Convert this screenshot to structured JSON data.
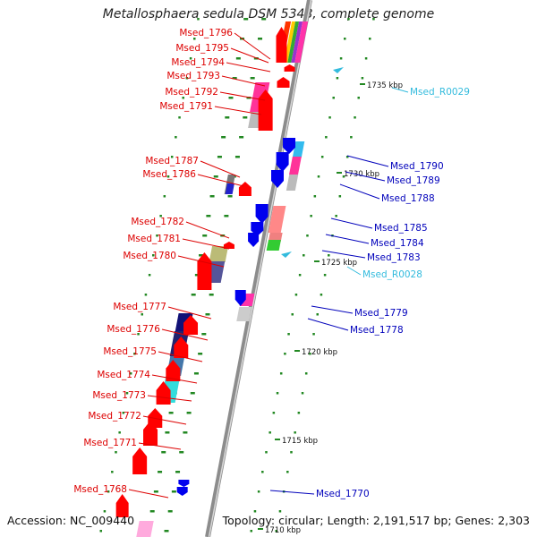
{
  "title": "Metallosphaera sedula DSM 5348, complete genome",
  "accession": "Accession: NC_009440",
  "summary": "Topology: circular; Length: 2,191,517 bp; Genes: 2,303",
  "colors": {
    "forward_label": "#dd0000",
    "reverse_label": "#0000bb",
    "rna_label": "#33bbdd",
    "tick_label": "#111111",
    "backbone": "#8c8c8c",
    "dots": "#228822"
  },
  "kbp_ticks": [
    "1735 kbp",
    "1730 kbp",
    "1725 kbp",
    "1720 kbp",
    "1715 kbp",
    "1710 kbp"
  ],
  "forward_genes": [
    "Msed_1796",
    "Msed_1795",
    "Msed_1794",
    "Msed_1793",
    "Msed_1792",
    "Msed_1791",
    "Msed_1787",
    "Msed_1786",
    "Msed_1782",
    "Msed_1781",
    "Msed_1780",
    "Msed_1777",
    "Msed_1776",
    "Msed_1775",
    "Msed_1774",
    "Msed_1773",
    "Msed_1772",
    "Msed_1771",
    "Msed_1768"
  ],
  "reverse_genes": [
    "Msed_1790",
    "Msed_1789",
    "Msed_1788",
    "Msed_1785",
    "Msed_1784",
    "Msed_1783",
    "Msed_1779",
    "Msed_1778",
    "Msed_1770"
  ],
  "rna_genes": [
    "Msed_R0029",
    "Msed_R0028"
  ]
}
